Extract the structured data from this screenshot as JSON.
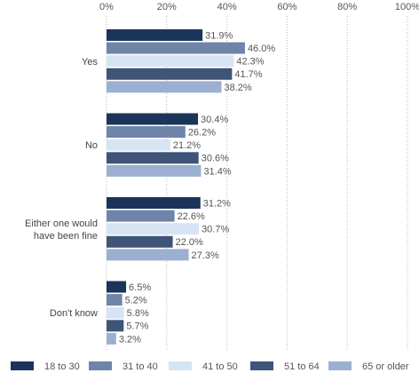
{
  "chart_data": {
    "type": "hbar",
    "categories": [
      "Yes",
      "No",
      "Either one would have been fine",
      "Don't know"
    ],
    "series": [
      {
        "name": "18 to 30",
        "color": "#1b3459",
        "values": [
          31.9,
          30.4,
          31.2,
          6.5
        ],
        "value_labels": [
          "31.9%",
          "30.4%",
          "31.2%",
          "6.5%"
        ]
      },
      {
        "name": "31 to 40",
        "color": "#6e85a9",
        "values": [
          46.0,
          26.2,
          22.6,
          5.2
        ],
        "value_labels": [
          "46.0%",
          "26.2%",
          "22.6%",
          "5.2%"
        ]
      },
      {
        "name": "41 to 50",
        "color": "#d7e4f4",
        "values": [
          42.3,
          21.2,
          30.7,
          5.8
        ],
        "value_labels": [
          "42.3%",
          "21.2%",
          "30.7%",
          "5.8%"
        ]
      },
      {
        "name": "51 to 64",
        "color": "#3e5579",
        "values": [
          41.7,
          30.6,
          22.0,
          5.7
        ],
        "value_labels": [
          "41.7%",
          "30.6%",
          "22.0%",
          "5.7%"
        ]
      },
      {
        "name": "65 or older",
        "color": "#9bb0d0",
        "values": [
          38.2,
          31.4,
          27.3,
          3.2
        ],
        "value_labels": [
          "38.2%",
          "31.4%",
          "27.3%",
          "3.2%"
        ]
      }
    ],
    "xlim": [
      0,
      100
    ],
    "xticks": [
      {
        "value": 0,
        "label": "0%"
      },
      {
        "value": 20,
        "label": "20%"
      },
      {
        "value": 40,
        "label": "40%"
      },
      {
        "value": 60,
        "label": "60%"
      },
      {
        "value": 80,
        "label": "80%"
      },
      {
        "value": 100,
        "label": "100%"
      }
    ],
    "grid": true,
    "legend": "bottom"
  }
}
